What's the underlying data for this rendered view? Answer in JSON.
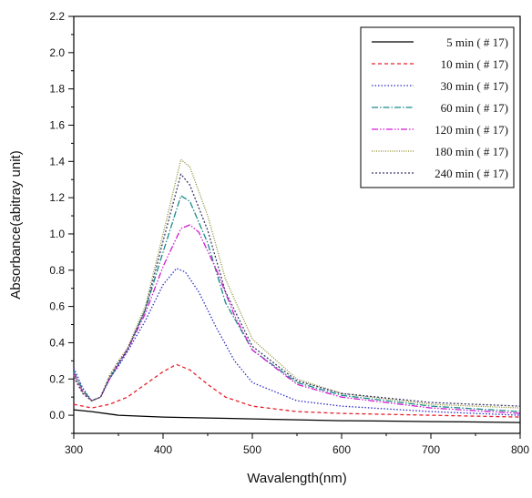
{
  "chart_data": {
    "type": "line",
    "title": "",
    "xlabel": "Wavalength(nm)",
    "ylabel": "Absorbance(abitray unit)",
    "xlim": [
      300,
      800
    ],
    "ylim": [
      -0.1,
      2.2
    ],
    "xticks": [
      300,
      400,
      500,
      600,
      700,
      800
    ],
    "xtick_labels": [
      "300",
      "400",
      "500",
      "600",
      "700",
      "800"
    ],
    "yticks": [
      0.0,
      0.2,
      0.4,
      0.6,
      0.8,
      1.0,
      1.2,
      1.4,
      1.6,
      1.8,
      2.0,
      2.2
    ],
    "ytick_labels": [
      "0.0",
      "0.2",
      "0.4",
      "0.6",
      "0.8",
      "1.0",
      "1.2",
      "1.4",
      "1.6",
      "1.8",
      "2.0",
      "2.2"
    ],
    "grid": false,
    "legend_position": "top-right",
    "series": [
      {
        "name": "5 min ( # 17)",
        "color": "#000000",
        "dash": "",
        "x": [
          300,
          320,
          350,
          400,
          450,
          500,
          550,
          600,
          650,
          700,
          750,
          800
        ],
        "y": [
          0.03,
          0.02,
          0.0,
          -0.01,
          -0.015,
          -0.02,
          -0.025,
          -0.03,
          -0.032,
          -0.035,
          -0.037,
          -0.04
        ]
      },
      {
        "name": "10 min ( # 17)",
        "color": "#e8202a",
        "dash": "4,3",
        "x": [
          300,
          320,
          340,
          360,
          380,
          400,
          415,
          430,
          450,
          470,
          500,
          550,
          600,
          700,
          800
        ],
        "y": [
          0.06,
          0.04,
          0.06,
          0.1,
          0.17,
          0.24,
          0.28,
          0.25,
          0.17,
          0.1,
          0.05,
          0.02,
          0.01,
          0.0,
          -0.01
        ]
      },
      {
        "name": "30 min ( # 17)",
        "color": "#2c2cc8",
        "dash": "1.5,2",
        "x": [
          300,
          310,
          320,
          330,
          340,
          350,
          360,
          380,
          400,
          415,
          425,
          440,
          460,
          480,
          500,
          550,
          600,
          700,
          800
        ],
        "y": [
          0.26,
          0.15,
          0.08,
          0.1,
          0.2,
          0.27,
          0.35,
          0.52,
          0.72,
          0.81,
          0.79,
          0.68,
          0.48,
          0.3,
          0.18,
          0.08,
          0.05,
          0.02,
          0.0
        ]
      },
      {
        "name": "60 min ( # 17)",
        "color": "#1a8a8a",
        "dash": "7,2,1.5,2",
        "x": [
          300,
          310,
          320,
          330,
          340,
          350,
          360,
          380,
          400,
          420,
          430,
          450,
          470,
          500,
          550,
          600,
          700,
          800
        ],
        "y": [
          0.24,
          0.14,
          0.08,
          0.1,
          0.2,
          0.28,
          0.36,
          0.58,
          0.9,
          1.21,
          1.18,
          0.95,
          0.62,
          0.36,
          0.18,
          0.11,
          0.05,
          0.02
        ]
      },
      {
        "name": "120 min ( # 17)",
        "color": "#d21ad2",
        "dash": "7,2,1.5,2,1.5,2",
        "x": [
          300,
          310,
          320,
          330,
          340,
          350,
          360,
          380,
          400,
          420,
          430,
          440,
          460,
          480,
          500,
          550,
          600,
          700,
          800
        ],
        "y": [
          0.23,
          0.13,
          0.08,
          0.1,
          0.2,
          0.28,
          0.36,
          0.56,
          0.82,
          1.03,
          1.05,
          1.01,
          0.8,
          0.55,
          0.36,
          0.17,
          0.1,
          0.04,
          0.01
        ]
      },
      {
        "name": "180 min ( # 17)",
        "color": "#8a8a2c",
        "dash": "1,1.5",
        "x": [
          300,
          310,
          320,
          330,
          340,
          350,
          360,
          380,
          400,
          420,
          430,
          450,
          470,
          500,
          550,
          600,
          700,
          800
        ],
        "y": [
          0.22,
          0.13,
          0.08,
          0.1,
          0.22,
          0.3,
          0.37,
          0.6,
          1.0,
          1.41,
          1.37,
          1.1,
          0.75,
          0.42,
          0.2,
          0.12,
          0.06,
          0.04
        ]
      },
      {
        "name": "240 min ( # 17)",
        "color": "#3a3a6a",
        "dash": "2,2",
        "x": [
          300,
          310,
          320,
          330,
          340,
          350,
          360,
          380,
          400,
          420,
          430,
          450,
          470,
          500,
          550,
          600,
          700,
          800
        ],
        "y": [
          0.21,
          0.12,
          0.08,
          0.1,
          0.21,
          0.29,
          0.36,
          0.58,
          0.96,
          1.33,
          1.27,
          1.02,
          0.68,
          0.38,
          0.19,
          0.12,
          0.07,
          0.05
        ]
      }
    ]
  }
}
